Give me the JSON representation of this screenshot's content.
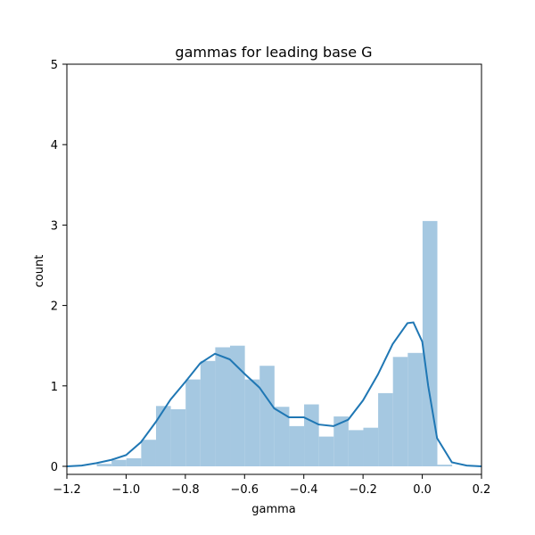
{
  "chart_data": {
    "type": "bar",
    "title": "gammas for leading base G",
    "xlabel": "gamma",
    "ylabel": "count",
    "xlim": [
      -1.2,
      0.2
    ],
    "ylim": [
      -0.1,
      5
    ],
    "xticks": [
      -1.2,
      -1.0,
      -0.8,
      -0.6,
      -0.4,
      -0.2,
      0.0,
      0.2
    ],
    "xtick_labels": [
      "−1.2",
      "−1.0",
      "−0.8",
      "−0.6",
      "−0.4",
      "−0.2",
      "0.0",
      "0.2"
    ],
    "yticks": [
      0,
      1,
      2,
      3,
      4,
      5
    ],
    "ytick_labels": [
      "0",
      "1",
      "2",
      "3",
      "4",
      "5"
    ],
    "grid": false,
    "histogram": {
      "bin_edges": [
        -1.099,
        -1.049,
        -0.999,
        -0.949,
        -0.899,
        -0.849,
        -0.799,
        -0.749,
        -0.699,
        -0.649,
        -0.599,
        -0.549,
        -0.499,
        -0.449,
        -0.399,
        -0.349,
        -0.299,
        -0.249,
        -0.199,
        -0.149,
        -0.099,
        -0.049,
        0.001,
        0.051,
        0.101
      ],
      "counts": [
        0.03,
        0.08,
        0.1,
        0.33,
        0.75,
        0.71,
        1.08,
        1.31,
        1.48,
        1.5,
        1.08,
        1.25,
        0.74,
        0.5,
        0.77,
        0.37,
        0.62,
        0.45,
        0.48,
        0.91,
        1.36,
        1.41,
        3.05,
        0.02
      ],
      "color": "#a5c8e1"
    },
    "kde": {
      "x": [
        -1.2,
        -1.15,
        -1.1,
        -1.05,
        -1.0,
        -0.95,
        -0.9,
        -0.85,
        -0.8,
        -0.75,
        -0.7,
        -0.65,
        -0.6,
        -0.55,
        -0.5,
        -0.45,
        -0.4,
        -0.35,
        -0.3,
        -0.25,
        -0.2,
        -0.15,
        -0.1,
        -0.05,
        -0.03,
        0.0,
        0.02,
        0.05,
        0.1,
        0.15,
        0.2
      ],
      "y": [
        0.0,
        0.01,
        0.04,
        0.08,
        0.14,
        0.3,
        0.55,
        0.83,
        1.05,
        1.28,
        1.4,
        1.33,
        1.15,
        0.98,
        0.72,
        0.61,
        0.61,
        0.52,
        0.5,
        0.58,
        0.82,
        1.14,
        1.52,
        1.78,
        1.79,
        1.55,
        1.0,
        0.35,
        0.05,
        0.01,
        0.0
      ],
      "color": "#1f77b4"
    }
  }
}
